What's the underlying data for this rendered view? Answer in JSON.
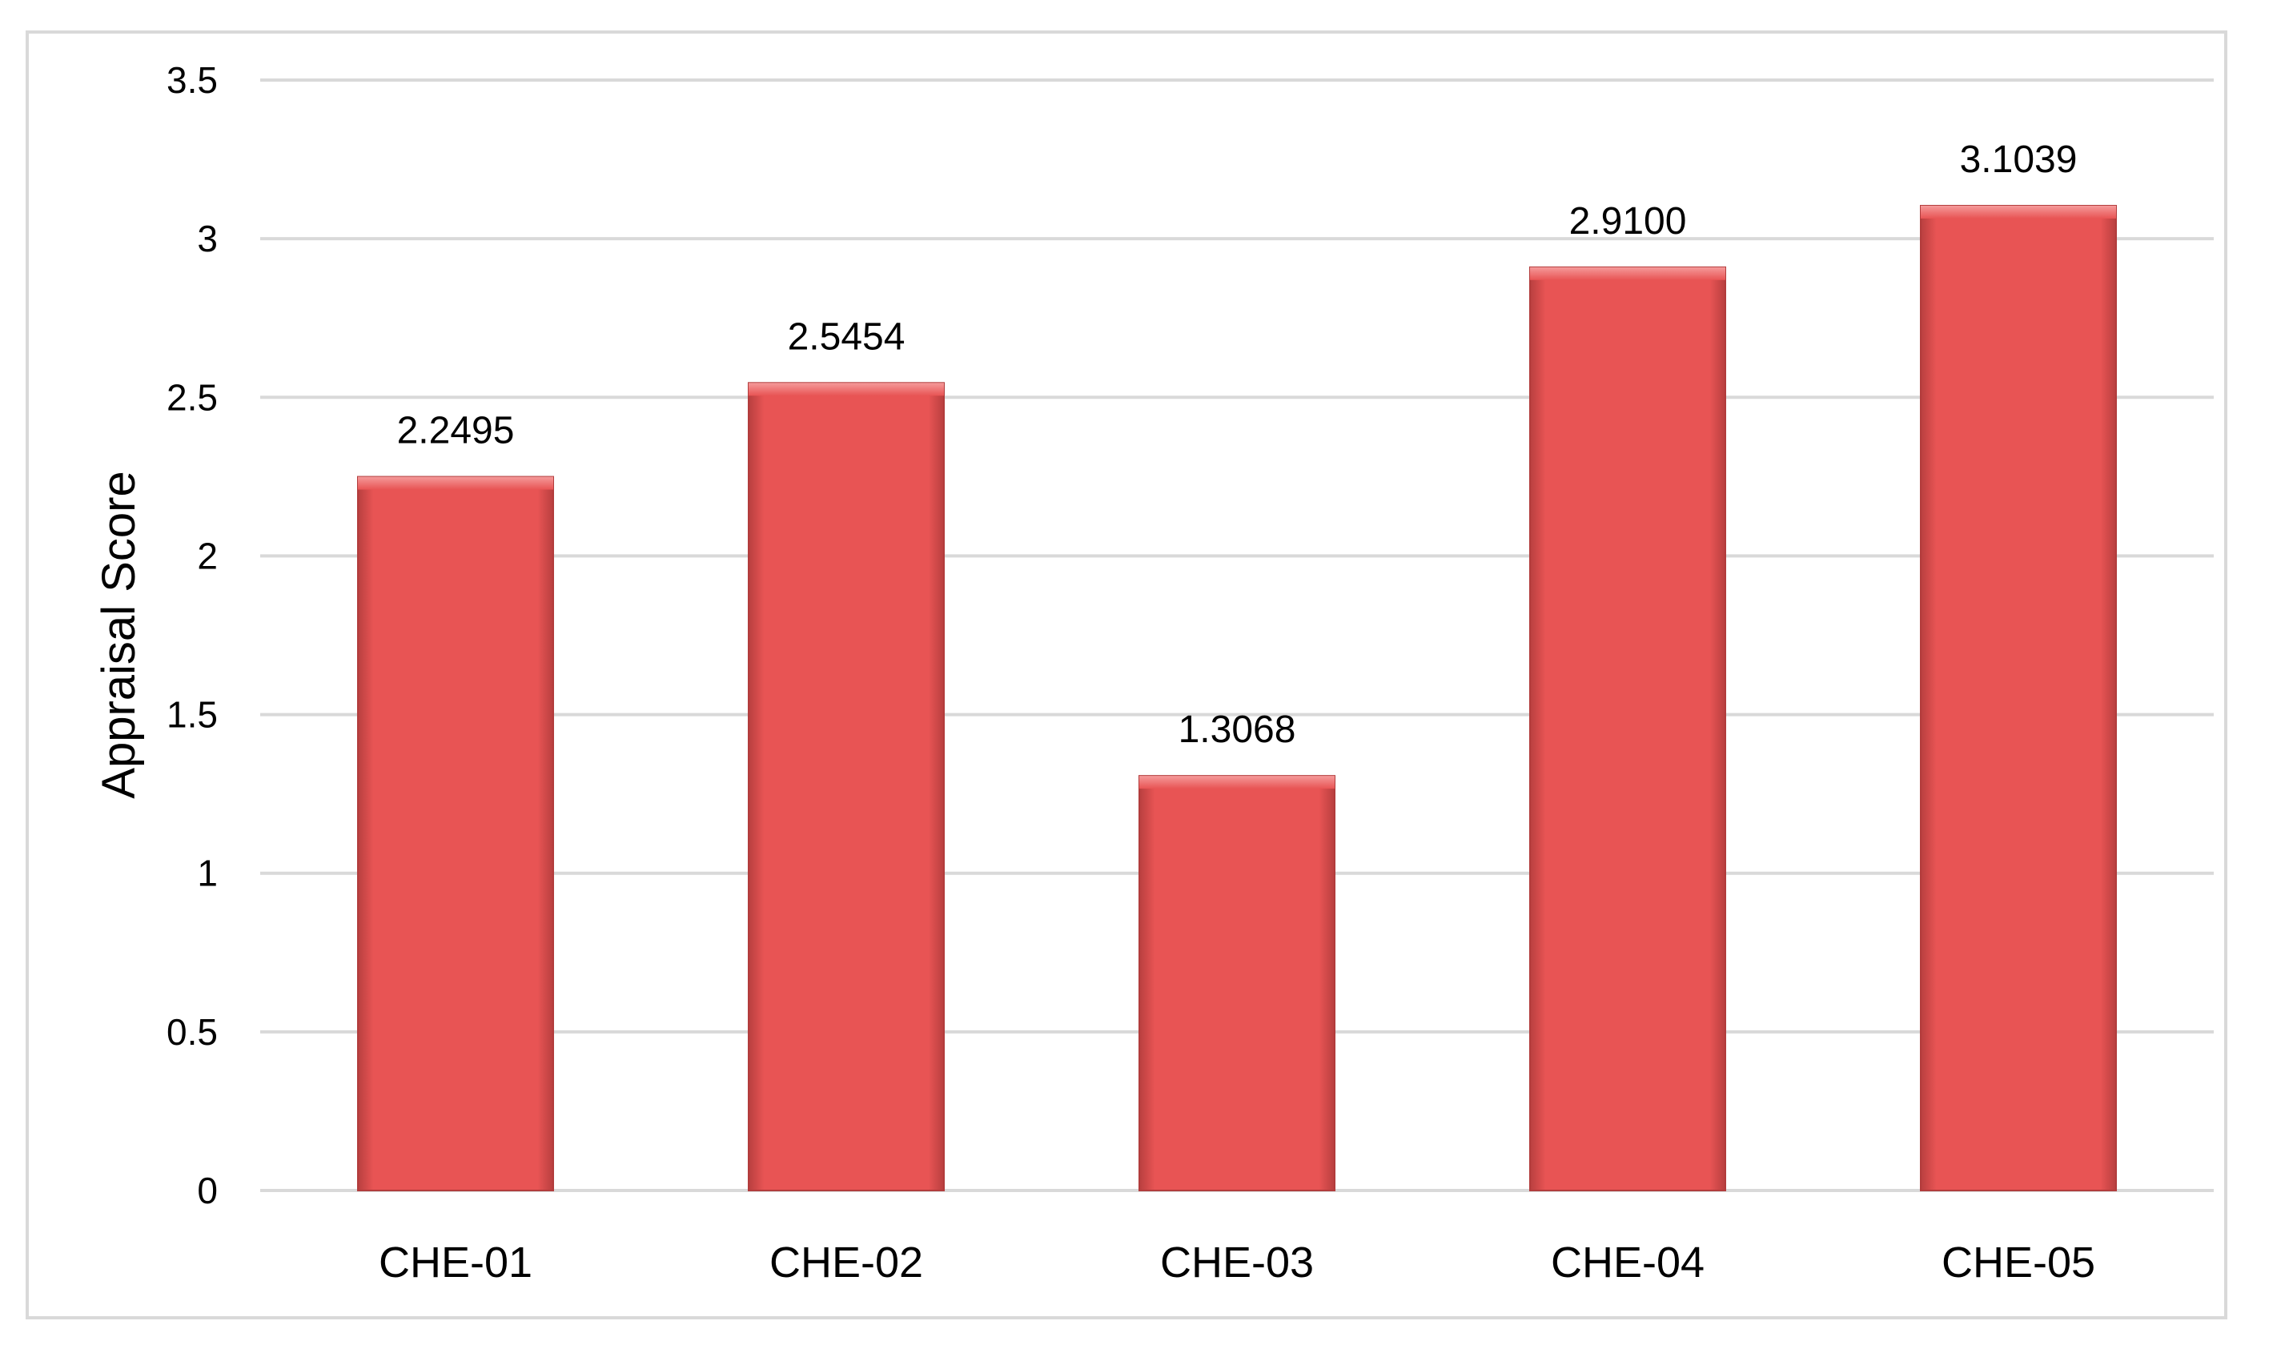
{
  "chart_data": {
    "type": "bar",
    "categories": [
      "CHE-01",
      "CHE-02",
      "CHE-03",
      "CHE-04",
      "CHE-05"
    ],
    "values": [
      2.2495,
      2.5454,
      1.3068,
      2.91,
      3.1039
    ],
    "data_labels": [
      "2.2495",
      "2.5454",
      "1.3068",
      "2.9100",
      "3.1039"
    ],
    "title": "",
    "xlabel": "",
    "ylabel": "Appraisal Score",
    "ylim": [
      0,
      3.5
    ],
    "yticks": [
      0,
      0.5,
      1,
      1.5,
      2,
      2.5,
      3,
      3.5
    ],
    "ytick_labels": [
      "0",
      "0.5",
      "1",
      "1.5",
      "2",
      "2.5",
      "3",
      "3.5"
    ],
    "grid": true,
    "legend": "none",
    "colors": {
      "bar": "#e85454",
      "bar_edge": "#b23c3c",
      "grid": "#d9d9d9"
    }
  }
}
